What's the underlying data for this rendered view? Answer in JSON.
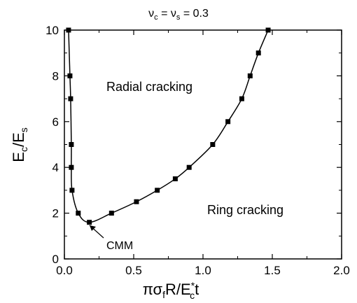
{
  "chart_data": {
    "type": "line",
    "title": {
      "nu1": "ν",
      "sub1": "c",
      "eq1": " = ",
      "nu2": "ν",
      "sub2": "s",
      "eq2": " = 0.3"
    },
    "xlabel": {
      "part1": "πσ",
      "sub1": "f",
      "part2": "R/E",
      "sup2": "*",
      "sub2": "c",
      "part3": "t"
    },
    "ylabel": {
      "part1": "E",
      "sub1": "c",
      "part2": "/E",
      "sub2": "s"
    },
    "xlim": [
      0,
      2.0
    ],
    "ylim": [
      0,
      10
    ],
    "xticks": [
      "0.0",
      "0.5",
      "1.0",
      "1.5",
      "2.0"
    ],
    "yticks": [
      "0",
      "2",
      "4",
      "6",
      "8",
      "10"
    ],
    "grid": false,
    "series": [
      {
        "marker": "square",
        "color": "#000000",
        "x": [
          0.03,
          0.04,
          0.045,
          0.05,
          0.05,
          0.055,
          0.1,
          0.18,
          0.34,
          0.52,
          0.67,
          0.8,
          0.9,
          1.07,
          1.18,
          1.28,
          1.34,
          1.4,
          1.47
        ],
        "y": [
          10,
          8,
          7,
          5,
          4,
          3,
          2,
          1.6,
          2,
          2.5,
          3,
          3.5,
          4,
          5,
          6,
          7,
          8,
          9,
          10
        ]
      }
    ],
    "annotations": {
      "radial": "Radial cracking",
      "ring": "Ring cracking",
      "cmm": "CMM"
    }
  }
}
